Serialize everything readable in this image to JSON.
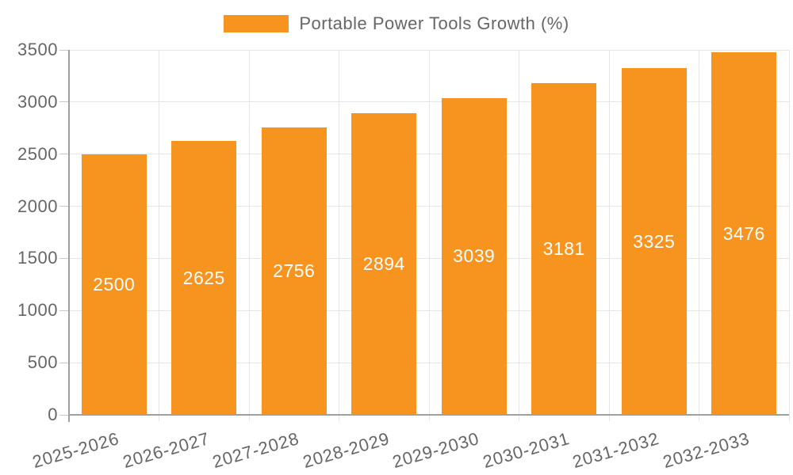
{
  "chart_data": {
    "type": "bar",
    "title": "",
    "categories": [
      "2025-2026",
      "2026-2027",
      "2027-2028",
      "2028-2029",
      "2029-2030",
      "2030-2031",
      "2031-2032",
      "2032-2033"
    ],
    "series": [
      {
        "name": "Portable Power Tools Growth (%)",
        "values": [
          2500,
          2625,
          2756,
          2894,
          3039,
          3181,
          3325,
          3476
        ],
        "color": "#f79420"
      }
    ],
    "xlabel": "",
    "ylabel": "",
    "ylim": [
      0,
      3500
    ],
    "yticks": [
      0,
      500,
      1000,
      1500,
      2000,
      2500,
      3000,
      3500
    ],
    "grid": true,
    "legend_position": "top-center",
    "x_label_rotation_deg": -16,
    "bar_value_labels_shown": true,
    "colors": {
      "bar": "#f79420",
      "bar_label_text": "#ffffff",
      "axis_text": "#666666",
      "gridline": "#e5e5e5",
      "axis_line": "#a0a0a0",
      "tick_mark": "#c8c8c8",
      "background": "#ffffff"
    }
  }
}
